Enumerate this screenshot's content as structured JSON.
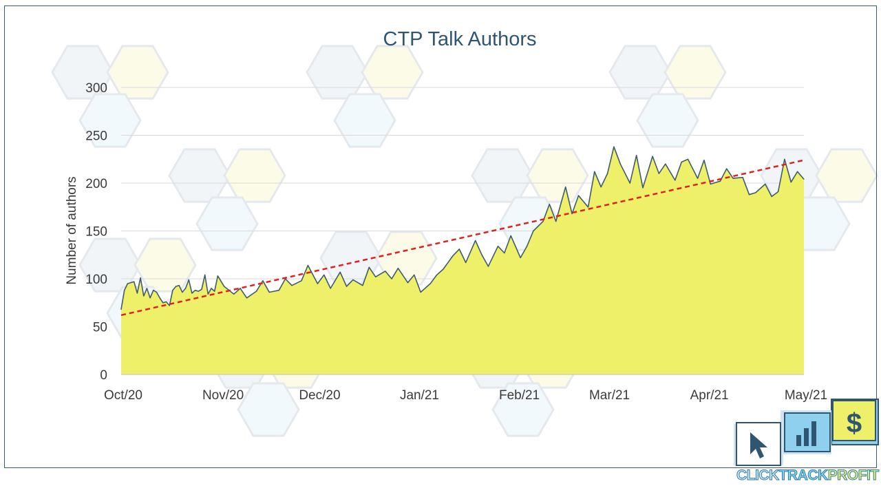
{
  "chart_data": {
    "type": "area",
    "title": "CTP Talk Authors",
    "xlabel": "",
    "ylabel": "Number of authors",
    "ylim": [
      0,
      300
    ],
    "y_ticks": [
      0,
      50,
      100,
      150,
      200,
      250,
      300
    ],
    "x_tick_labels": [
      "Oct/20",
      "Nov/20",
      "Dec/20",
      "Jan/21",
      "Feb/21",
      "Mar/21",
      "Apr/21",
      "May/21"
    ],
    "x_range": [
      "2020-10-01",
      "2021-05-01"
    ],
    "grid": "horizontal",
    "colors": {
      "fill": "#eef06a",
      "line": "#3d5a6e",
      "trend": "#e02020",
      "grid": "#d9d9d9"
    },
    "series": [
      {
        "type": "area",
        "x": [
          "2020-10-01",
          "2020-10-02",
          "2020-10-03",
          "2020-10-04",
          "2020-10-05",
          "2020-10-06",
          "2020-10-07",
          "2020-10-08",
          "2020-10-09",
          "2020-10-10",
          "2020-10-11",
          "2020-10-12",
          "2020-10-13",
          "2020-10-14",
          "2020-10-15",
          "2020-10-16",
          "2020-10-17",
          "2020-10-18",
          "2020-10-19",
          "2020-10-20",
          "2020-10-21",
          "2020-10-22",
          "2020-10-23",
          "2020-10-24",
          "2020-10-25",
          "2020-10-26",
          "2020-10-27",
          "2020-10-28",
          "2020-10-29",
          "2020-10-30",
          "2020-10-31",
          "2020-11-02",
          "2020-11-05",
          "2020-11-07",
          "2020-11-09",
          "2020-11-12",
          "2020-11-14",
          "2020-11-16",
          "2020-11-19",
          "2020-11-21",
          "2020-11-23",
          "2020-11-26",
          "2020-11-28",
          "2020-12-01",
          "2020-12-03",
          "2020-12-05",
          "2020-12-08",
          "2020-12-10",
          "2020-12-12",
          "2020-12-15",
          "2020-12-17",
          "2020-12-19",
          "2020-12-22",
          "2020-12-24",
          "2020-12-26",
          "2020-12-29",
          "2020-12-31",
          "2021-01-02",
          "2021-01-05",
          "2021-01-07",
          "2021-01-09",
          "2021-01-12",
          "2021-01-14",
          "2021-01-16",
          "2021-01-19",
          "2021-01-21",
          "2021-01-23",
          "2021-01-26",
          "2021-01-28",
          "2021-01-30",
          "2021-02-02",
          "2021-02-04",
          "2021-02-06",
          "2021-02-09",
          "2021-02-11",
          "2021-02-13",
          "2021-02-16",
          "2021-02-18",
          "2021-02-20",
          "2021-02-23",
          "2021-02-25",
          "2021-02-27",
          "2021-03-01",
          "2021-03-03",
          "2021-03-05",
          "2021-03-08",
          "2021-03-10",
          "2021-03-12",
          "2021-03-15",
          "2021-03-17",
          "2021-03-19",
          "2021-03-22",
          "2021-03-24",
          "2021-03-26",
          "2021-03-29",
          "2021-03-31",
          "2021-04-02",
          "2021-04-05",
          "2021-04-07",
          "2021-04-09",
          "2021-04-12",
          "2021-04-14",
          "2021-04-16",
          "2021-04-19",
          "2021-04-21",
          "2021-04-23",
          "2021-04-25",
          "2021-04-27",
          "2021-04-29",
          "2021-05-01"
        ],
        "values": [
          68,
          88,
          95,
          96,
          97,
          85,
          101,
          82,
          90,
          80,
          88,
          86,
          80,
          75,
          76,
          72,
          88,
          92,
          93,
          86,
          90,
          99,
          85,
          88,
          87,
          89,
          104,
          84,
          90,
          87,
          103,
          92,
          84,
          90,
          80,
          87,
          98,
          86,
          88,
          100,
          93,
          98,
          114,
          95,
          104,
          90,
          107,
          92,
          99,
          93,
          112,
          102,
          108,
          100,
          111,
          96,
          104,
          86,
          95,
          104,
          110,
          124,
          131,
          117,
          140,
          125,
          113,
          134,
          127,
          145,
          122,
          134,
          150,
          160,
          178,
          160,
          196,
          168,
          187,
          175,
          212,
          196,
          210,
          238,
          220,
          200,
          229,
          195,
          228,
          210,
          220,
          203,
          222,
          225,
          205,
          224,
          199,
          202,
          215,
          205,
          206,
          188,
          190,
          199,
          186,
          191,
          225,
          201,
          212,
          204
        ]
      },
      {
        "type": "trendline",
        "style": "dashed",
        "x": [
          "2020-10-01",
          "2021-05-01"
        ],
        "values": [
          62,
          224
        ]
      }
    ]
  },
  "brand": {
    "text": "CLICKTRACKPROFIT",
    "parts": [
      {
        "text": "CLICK",
        "color": "#cfe3f1"
      },
      {
        "text": "TRACK",
        "color": "#8fd0ee"
      },
      {
        "text": "PROFIT",
        "color": "#eef06a"
      }
    ],
    "icons": [
      "cursor-icon",
      "bar-chart-icon",
      "dollar-icon"
    ]
  }
}
